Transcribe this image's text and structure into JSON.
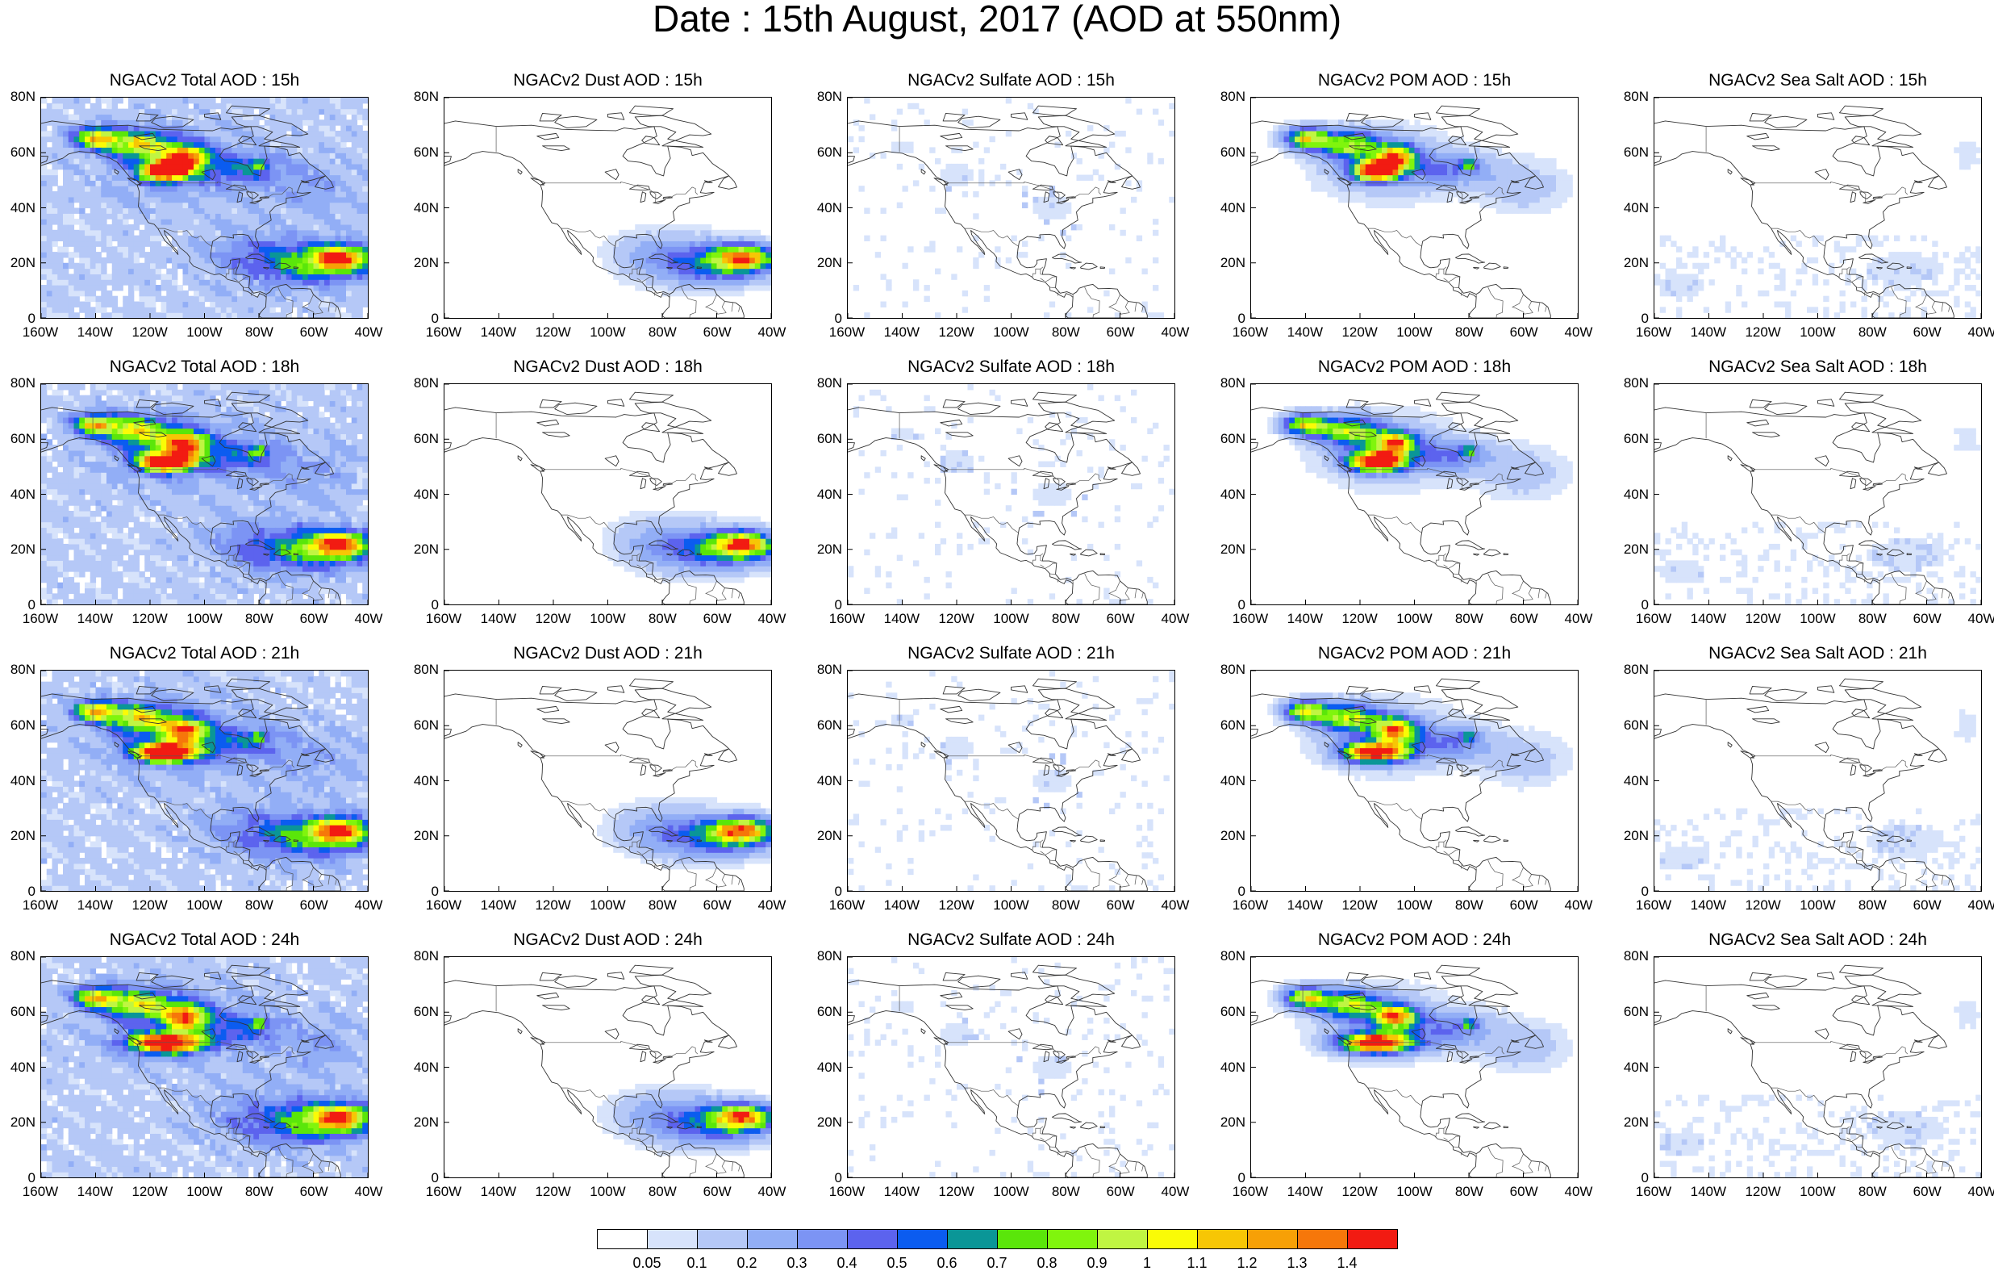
{
  "title": "Date : 15th August, 2017 (AOD at 550nm)",
  "lat_labels": [
    "80N",
    "60N",
    "40N",
    "20N",
    "0"
  ],
  "lon_labels": [
    "160W",
    "140W",
    "120W",
    "100W",
    "80W",
    "60W",
    "40W"
  ],
  "rows": [
    {
      "hour": "15h",
      "panels": [
        {
          "title": "NGACv2 Total AOD : 15h",
          "field": "total"
        },
        {
          "title": "NGACv2 Dust AOD : 15h",
          "field": "dust"
        },
        {
          "title": "NGACv2 Sulfate AOD : 15h",
          "field": "sulfate"
        },
        {
          "title": "NGACv2 POM AOD : 15h",
          "field": "pom"
        },
        {
          "title": "NGACv2 Sea Salt AOD : 15h",
          "field": "seasalt"
        }
      ]
    },
    {
      "hour": "18h",
      "panels": [
        {
          "title": "NGACv2 Total AOD : 18h",
          "field": "total"
        },
        {
          "title": "NGACv2 Dust AOD : 18h",
          "field": "dust"
        },
        {
          "title": "NGACv2 Sulfate AOD : 18h",
          "field": "sulfate"
        },
        {
          "title": "NGACv2 POM AOD : 18h",
          "field": "pom"
        },
        {
          "title": "NGACv2 Sea Salt AOD : 18h",
          "field": "seasalt"
        }
      ]
    },
    {
      "hour": "21h",
      "panels": [
        {
          "title": "NGACv2 Total AOD : 21h",
          "field": "total"
        },
        {
          "title": "NGACv2 Dust AOD : 21h",
          "field": "dust"
        },
        {
          "title": "NGACv2 Sulfate AOD : 21h",
          "field": "sulfate"
        },
        {
          "title": "NGACv2 POM AOD : 21h",
          "field": "pom"
        },
        {
          "title": "NGACv2 Sea Salt AOD : 21h",
          "field": "seasalt"
        }
      ]
    },
    {
      "hour": "24h",
      "panels": [
        {
          "title": "NGACv2 Total AOD : 24h",
          "field": "total"
        },
        {
          "title": "NGACv2 Dust AOD : 24h",
          "field": "dust"
        },
        {
          "title": "NGACv2 Sulfate AOD : 24h",
          "field": "sulfate"
        },
        {
          "title": "NGACv2 POM AOD : 24h",
          "field": "pom"
        },
        {
          "title": "NGACv2 Sea Salt  AOD : 24h",
          "field": "seasalt"
        }
      ]
    }
  ],
  "colorbar": {
    "colors": [
      "#ffffff",
      "#d7e3fb",
      "#b5c8f7",
      "#92aef6",
      "#7c94f4",
      "#5c63ee",
      "#0b5cf0",
      "#0a9697",
      "#5ae60a",
      "#80f50d",
      "#c0f542",
      "#fafb06",
      "#f7c605",
      "#f7a006",
      "#f6770a",
      "#f21b12"
    ],
    "labels": [
      "0.05",
      "0.1",
      "0.2",
      "0.3",
      "0.4",
      "0.5",
      "0.6",
      "0.7",
      "0.8",
      "0.9",
      "1",
      "1.1",
      "1.2",
      "1.3",
      "1.4"
    ]
  }
}
